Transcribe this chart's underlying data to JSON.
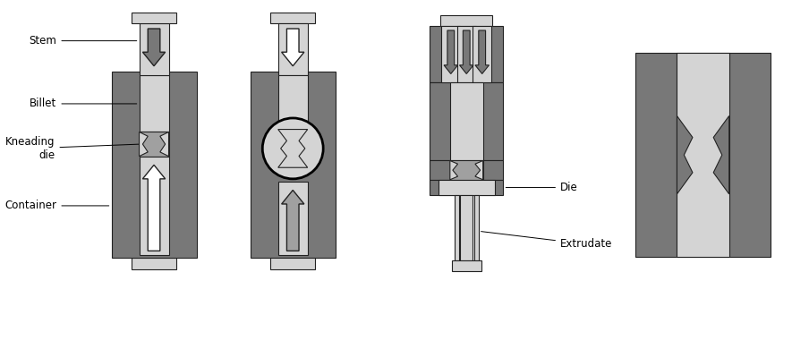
{
  "bg_color": "#ffffff",
  "light_gray": "#d4d4d4",
  "mid_gray": "#a0a0a0",
  "dark_gray": "#787878",
  "darker_gray": "#606060",
  "outline_color": "#222222",
  "text_color": "#000000",
  "labels": {
    "stem": "Stem",
    "billet": "Billet",
    "kneading_die": "Kneading\ndie",
    "container": "Container",
    "die": "Die",
    "extrudate": "Extrudate"
  },
  "figsize": [
    8.85,
    3.9
  ],
  "dpi": 100
}
